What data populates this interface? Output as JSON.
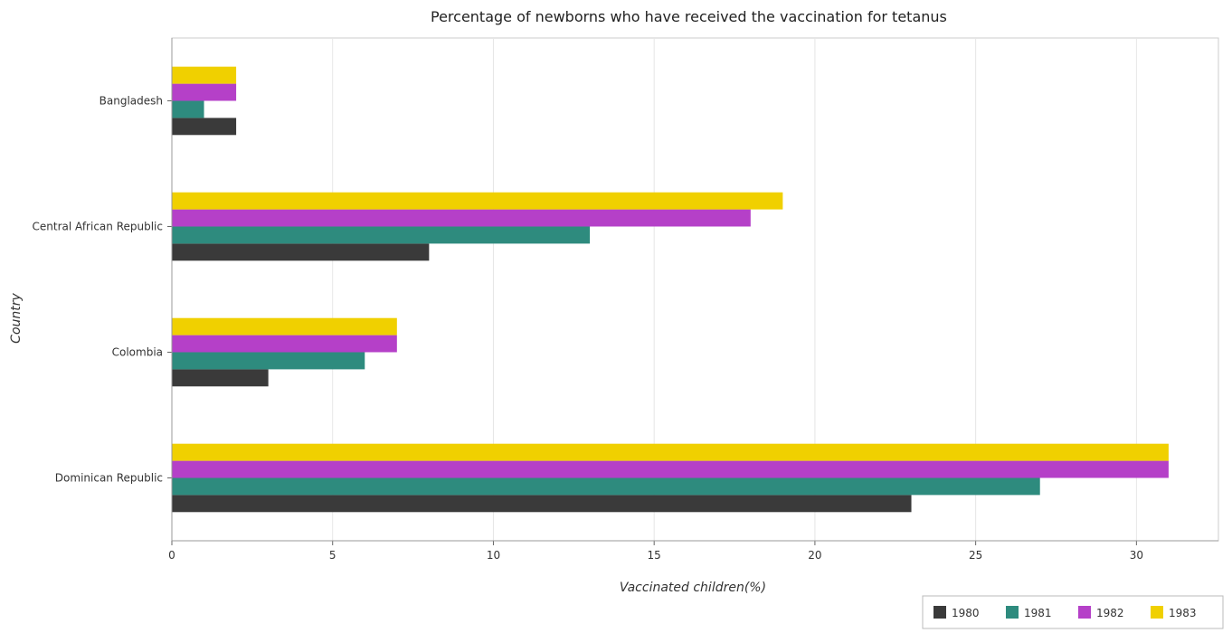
{
  "chart_data": {
    "type": "bar",
    "orientation": "horizontal",
    "title": "Percentage of newborns who have received the vaccination for tetanus",
    "xlabel": "Vaccinated children(%)",
    "ylabel": "Country",
    "xlim": [
      0,
      32.55
    ],
    "xticks": [
      0,
      5,
      10,
      15,
      20,
      25,
      30
    ],
    "categories": [
      "Bangladesh",
      "Central African Republic",
      "Colombia",
      "Dominican Republic"
    ],
    "series": [
      {
        "name": "1980",
        "color": "#3a3a3a",
        "values": [
          2,
          8,
          3,
          23
        ]
      },
      {
        "name": "1981",
        "color": "#2e8b7e",
        "values": [
          1,
          13,
          6,
          27
        ]
      },
      {
        "name": "1982",
        "color": "#b540c8",
        "values": [
          2,
          18,
          7,
          31
        ]
      },
      {
        "name": "1983",
        "color": "#f0d000",
        "values": [
          2,
          19,
          7,
          31
        ]
      }
    ],
    "grid": true,
    "legend_position": "bottom-right"
  }
}
